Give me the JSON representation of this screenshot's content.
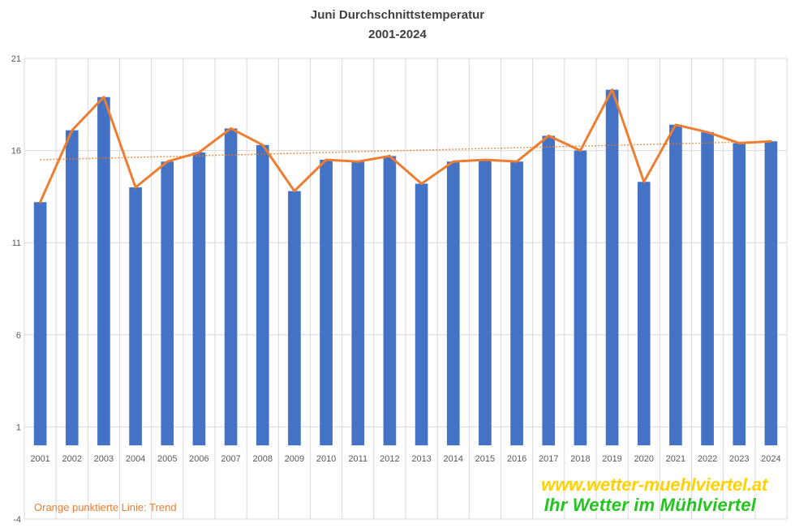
{
  "chart": {
    "title": "Juni Durchschnittstemperatur",
    "subtitle": "2001-2024"
  },
  "note": "Orange punktierte Linie: Trend",
  "branding": {
    "url": "www.wetter-muehlviertel.at",
    "tagline": "Ihr Wetter im Mühlviertel"
  },
  "colors": {
    "bar": "#4472c4",
    "line": "#ed7d31",
    "trend": "#ed7d31",
    "grid": "#d9d9d9",
    "axis_text": "#595959",
    "title": "#404040",
    "brand_url": "#ffd200",
    "brand_tagline": "#22c51d"
  },
  "chart_data": {
    "type": "bar",
    "title": "Juni Durchschnittstemperatur",
    "subtitle": "2001-2024",
    "categories": [
      "2001",
      "2002",
      "2003",
      "2004",
      "2005",
      "2006",
      "2007",
      "2008",
      "2009",
      "2010",
      "2011",
      "2012",
      "2013",
      "2014",
      "2015",
      "2016",
      "2017",
      "2018",
      "2019",
      "2020",
      "2021",
      "2022",
      "2023",
      "2024"
    ],
    "series": [
      {
        "values": [
          13.2,
          17.1,
          18.9,
          14.0,
          15.4,
          15.9,
          17.2,
          16.3,
          13.8,
          15.5,
          15.4,
          15.7,
          14.2,
          15.4,
          15.5,
          15.4,
          16.8,
          16.0,
          19.3,
          14.3,
          17.4,
          17.0,
          16.4,
          16.5
        ],
        "render": "bar"
      },
      {
        "values": [
          13.2,
          17.1,
          18.9,
          14.0,
          15.4,
          15.9,
          17.2,
          16.3,
          13.8,
          15.5,
          15.4,
          15.7,
          14.2,
          15.4,
          15.5,
          15.4,
          16.8,
          16.0,
          19.3,
          14.3,
          17.4,
          17.0,
          16.4,
          16.5
        ],
        "render": "line"
      }
    ],
    "trend": {
      "start": 15.5,
      "end": 16.5,
      "style": "dotted"
    },
    "yticks": [
      "21",
      "16",
      "11",
      "6",
      "1",
      "-4"
    ],
    "ylim": [
      -4,
      21
    ],
    "grid": true,
    "legend": "none"
  }
}
